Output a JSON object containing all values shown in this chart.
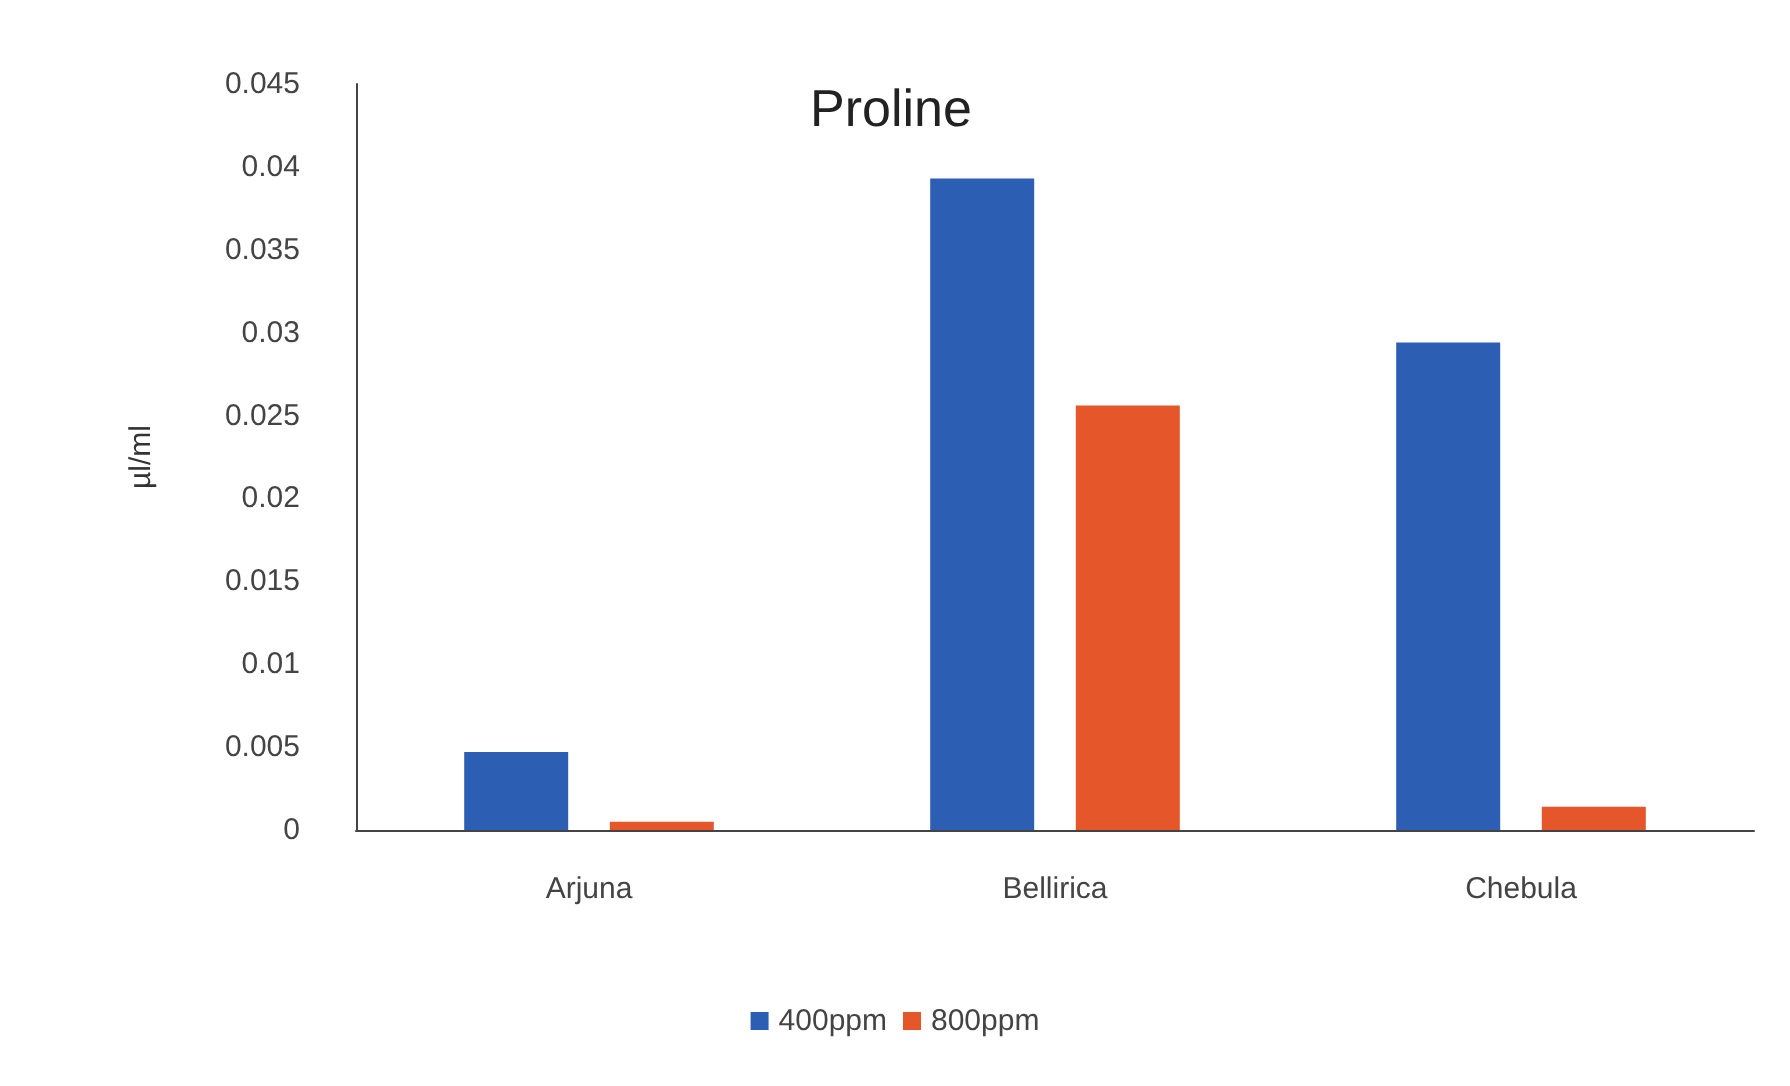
{
  "chart_data": {
    "type": "bar",
    "title": "Proline",
    "ylabel": "µl/ml",
    "categories": [
      "Arjuna",
      "Bellirica",
      "Chebula"
    ],
    "series": [
      {
        "name": "400ppm",
        "color": "#2c5fb3",
        "values": [
          0.0047,
          0.0393,
          0.0294
        ]
      },
      {
        "name": "800ppm",
        "color": "#e5562a",
        "values": [
          0.0005,
          0.0256,
          0.0014
        ]
      }
    ],
    "ylim": [
      0,
      0.045
    ],
    "yticks": [
      0,
      0.005,
      0.01,
      0.015,
      0.02,
      0.025,
      0.03,
      0.035,
      0.04,
      0.045
    ],
    "grid": false,
    "legend": "bottom"
  }
}
